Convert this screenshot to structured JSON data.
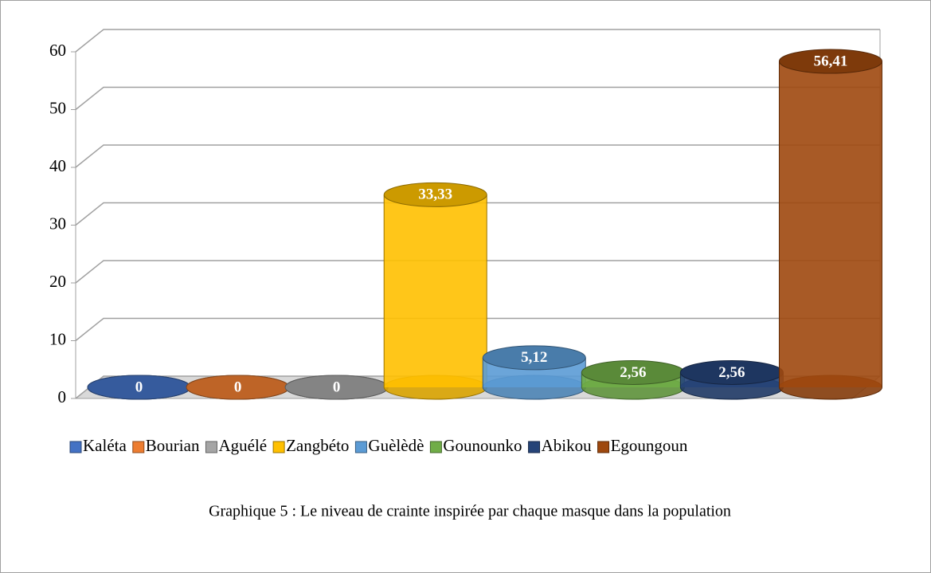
{
  "chart_data": {
    "type": "bar3d",
    "caption": "Graphique 5 : Le niveau de crainte inspirée par chaque masque dans la population",
    "categories": [
      "Kaléta",
      "Bourian",
      "Aguélé",
      "Zangbéto",
      "Guèlèdè",
      "Gounounko",
      "Abikou",
      "Egoungoun"
    ],
    "values": [
      0,
      0,
      0,
      33.33,
      5.12,
      2.56,
      2.56,
      56.41
    ],
    "value_labels": [
      "0",
      "0",
      "0",
      "33,33",
      "5,12",
      "2,56",
      "2,56",
      "56,41"
    ],
    "colors": [
      "#4472c4",
      "#ed7d31",
      "#a5a5a5",
      "#ffc000",
      "#5b9bd5",
      "#70ad47",
      "#264478",
      "#9e480e"
    ],
    "ylim": [
      0,
      60
    ],
    "yticks": [
      0,
      10,
      20,
      30,
      40,
      50,
      60
    ],
    "grid": true,
    "legend": "bottom"
  }
}
